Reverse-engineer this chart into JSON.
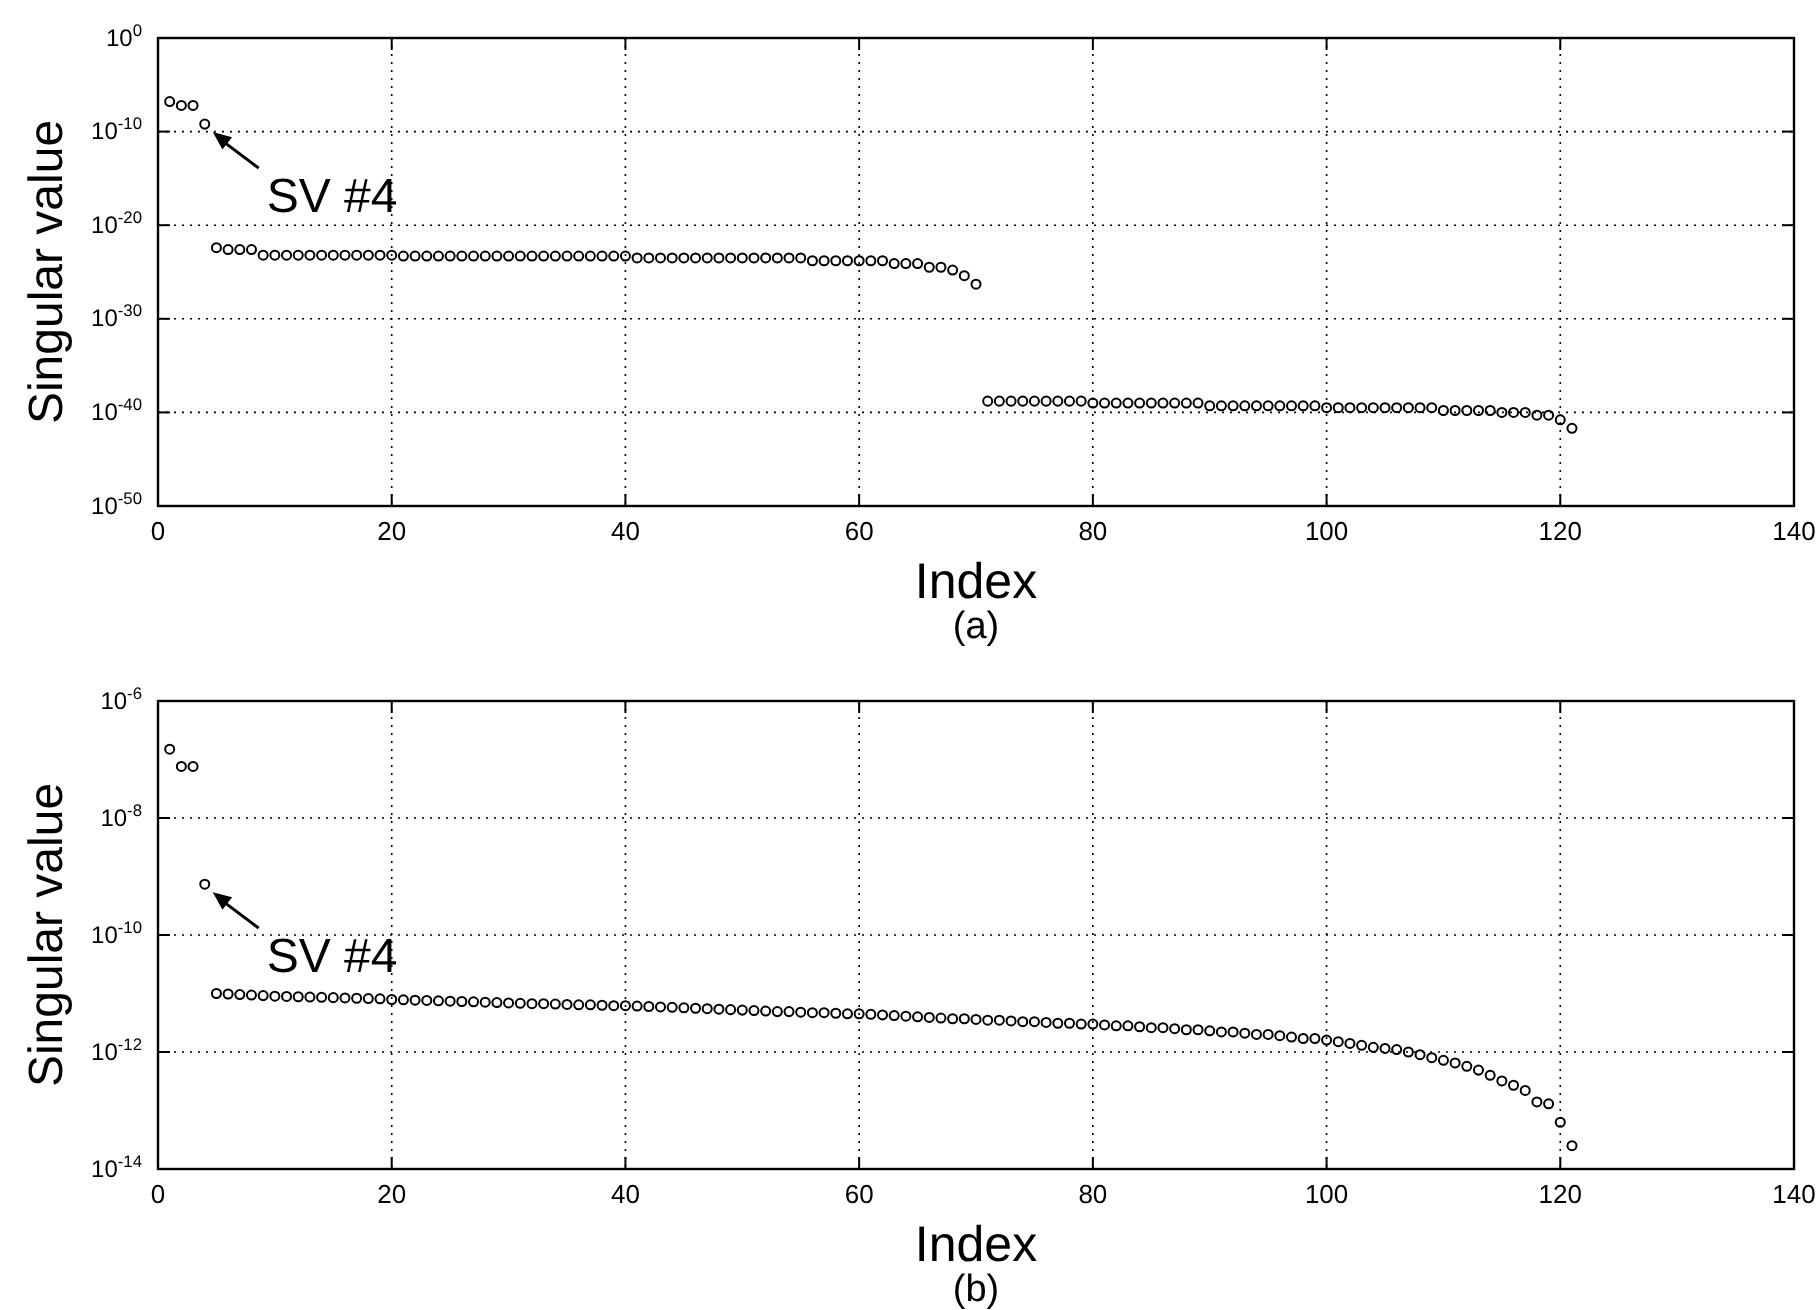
{
  "chart_data": [
    {
      "type": "scatter",
      "xlabel": "Index",
      "ylabel": "Singular value",
      "log": "y",
      "grid": true,
      "marker": "circle",
      "xlim": [
        0,
        140
      ],
      "xticks": [
        0,
        20,
        40,
        60,
        80,
        100,
        120,
        140
      ],
      "ylim": [
        1e-50,
        1
      ],
      "yticks": [
        {
          "value": 1e-50,
          "label": "10$^{-50}$"
        },
        {
          "value": 1e-40,
          "label": "10$^{-40}$"
        },
        {
          "value": 1e-30,
          "label": "10$^{-30}$"
        },
        {
          "value": 1e-20,
          "label": "10$^{-20}$"
        },
        {
          "value": 1e-10,
          "label": "10$^{-10}$"
        },
        {
          "value": 1,
          "label": "10$^{0}$"
        }
      ],
      "annotations": [
        {
          "text": "SV #4",
          "x": 4,
          "y": 6.3e-10
        },
        "(a)"
      ],
      "series": [
        {
          "color": "#000000",
          "x": [
            1,
            2,
            3,
            4,
            5,
            6,
            7,
            8,
            9,
            10,
            11,
            12,
            13,
            14,
            15,
            16,
            17,
            18,
            19,
            20,
            21,
            22,
            23,
            24,
            25,
            26,
            27,
            28,
            29,
            30,
            31,
            32,
            33,
            34,
            35,
            36,
            37,
            38,
            39,
            40,
            41,
            42,
            43,
            44,
            45,
            46,
            47,
            48,
            49,
            50,
            51,
            52,
            53,
            54,
            55,
            56,
            57,
            58,
            59,
            60,
            61,
            62,
            63,
            64,
            65,
            66,
            67,
            68,
            69,
            70,
            71,
            72,
            73,
            74,
            75,
            76,
            77,
            78,
            79,
            80,
            81,
            82,
            83,
            84,
            85,
            86,
            87,
            88,
            89,
            90,
            91,
            92,
            93,
            94,
            95,
            96,
            97,
            98,
            99,
            100,
            101,
            102,
            103,
            104,
            105,
            106,
            107,
            108,
            109,
            110,
            111,
            112,
            113,
            114,
            115,
            116,
            117,
            118,
            119,
            120,
            121
          ],
          "values": [
            1.6e-07,
            6.3e-08,
            6.3e-08,
            6.3e-10,
            4e-23,
            2.5e-23,
            2.5e-23,
            2.5e-23,
            6.3e-24,
            6.3e-24,
            6.3e-24,
            6.3e-24,
            6.3e-24,
            6.3e-24,
            6.3e-24,
            6.3e-24,
            6.3e-24,
            6.3e-24,
            6.3e-24,
            6.3e-24,
            5e-24,
            5e-24,
            5e-24,
            5e-24,
            5e-24,
            5e-24,
            5e-24,
            5e-24,
            5e-24,
            5e-24,
            5e-24,
            5e-24,
            5e-24,
            5e-24,
            5e-24,
            5e-24,
            5e-24,
            5e-24,
            5e-24,
            5e-24,
            3.2e-24,
            3.2e-24,
            3.2e-24,
            3.2e-24,
            3.2e-24,
            3.2e-24,
            3.2e-24,
            3.2e-24,
            3.2e-24,
            3.2e-24,
            3.2e-24,
            3.2e-24,
            3.2e-24,
            3.2e-24,
            3.2e-24,
            1.6e-24,
            1.6e-24,
            1.6e-24,
            1.6e-24,
            1.6e-24,
            1.6e-24,
            1.6e-24,
            8e-25,
            8e-25,
            8e-25,
            3.2e-25,
            3.2e-25,
            1.6e-25,
            4e-26,
            5e-27,
            1.6e-39,
            1.6e-39,
            1.6e-39,
            1.6e-39,
            1.6e-39,
            1.6e-39,
            1.6e-39,
            1.6e-39,
            1.6e-39,
            1e-39,
            1e-39,
            1e-39,
            1e-39,
            1e-39,
            1e-39,
            1e-39,
            1e-39,
            1e-39,
            1e-39,
            5e-40,
            5e-40,
            5e-40,
            5e-40,
            5e-40,
            5e-40,
            5e-40,
            5e-40,
            5e-40,
            5e-40,
            3.2e-40,
            3.2e-40,
            3.2e-40,
            3.2e-40,
            3.2e-40,
            3.2e-40,
            3.2e-40,
            3.2e-40,
            3.2e-40,
            3.2e-40,
            1.6e-40,
            1.6e-40,
            1.6e-40,
            1.6e-40,
            1.6e-40,
            1e-40,
            1e-40,
            1e-40,
            5e-41,
            5e-41,
            1.6e-41,
            2e-42
          ]
        }
      ]
    },
    {
      "type": "scatter",
      "xlabel": "Index",
      "ylabel": "Singular value",
      "log": "y",
      "grid": true,
      "marker": "circle",
      "xlim": [
        0,
        140
      ],
      "xticks": [
        0,
        20,
        40,
        60,
        80,
        100,
        120,
        140
      ],
      "ylim": [
        1e-14,
        1e-06
      ],
      "yticks": [
        {
          "value": 1e-14,
          "label": "10$^{-14}$"
        },
        {
          "value": 1e-12,
          "label": "10$^{-12}$"
        },
        {
          "value": 1e-10,
          "label": "10$^{-10}$"
        },
        {
          "value": 1e-08,
          "label": "10$^{-8}$"
        },
        {
          "value": 1e-06,
          "label": "10$^{-6}$"
        }
      ],
      "annotations": [
        {
          "text": "SV #4",
          "x": 4,
          "y": 7.4e-10
        },
        "(b)"
      ],
      "series": [
        {
          "color": "#000000",
          "x": [
            1,
            2,
            3,
            4,
            5,
            6,
            7,
            8,
            9,
            10,
            11,
            12,
            13,
            14,
            15,
            16,
            17,
            18,
            19,
            20,
            21,
            22,
            23,
            24,
            25,
            26,
            27,
            28,
            29,
            30,
            31,
            32,
            33,
            34,
            35,
            36,
            37,
            38,
            39,
            40,
            41,
            42,
            43,
            44,
            45,
            46,
            47,
            48,
            49,
            50,
            51,
            52,
            53,
            54,
            55,
            56,
            57,
            58,
            59,
            60,
            61,
            62,
            63,
            64,
            65,
            66,
            67,
            68,
            69,
            70,
            71,
            72,
            73,
            74,
            75,
            76,
            77,
            78,
            79,
            80,
            81,
            82,
            83,
            84,
            85,
            86,
            87,
            88,
            89,
            90,
            91,
            92,
            93,
            94,
            95,
            96,
            97,
            98,
            99,
            100,
            101,
            102,
            103,
            104,
            105,
            106,
            107,
            108,
            109,
            110,
            111,
            112,
            113,
            114,
            115,
            116,
            117,
            118,
            119,
            120,
            121
          ],
          "values": [
            1.5e-07,
            7.6e-08,
            7.6e-08,
            7.4e-10,
            1e-11,
            9.8e-12,
            9.6e-12,
            9.4e-12,
            9.2e-12,
            9e-12,
            8.9e-12,
            8.8e-12,
            8.7e-12,
            8.6e-12,
            8.5e-12,
            8.4e-12,
            8.3e-12,
            8.2e-12,
            8.1e-12,
            7.9e-12,
            7.8e-12,
            7.7e-12,
            7.6e-12,
            7.5e-12,
            7.4e-12,
            7.3e-12,
            7.2e-12,
            7.1e-12,
            7e-12,
            6.9e-12,
            6.8e-12,
            6.7e-12,
            6.7e-12,
            6.6e-12,
            6.5e-12,
            6.4e-12,
            6.4e-12,
            6.3e-12,
            6.2e-12,
            6.2e-12,
            6.1e-12,
            6e-12,
            5.9e-12,
            5.8e-12,
            5.7e-12,
            5.6e-12,
            5.5e-12,
            5.4e-12,
            5.3e-12,
            5.2e-12,
            5.1e-12,
            5e-12,
            4.9e-12,
            4.9e-12,
            4.8e-12,
            4.7e-12,
            4.7e-12,
            4.6e-12,
            4.5e-12,
            4.5e-12,
            4.4e-12,
            4.3e-12,
            4.2e-12,
            4.1e-12,
            4e-12,
            3.9e-12,
            3.8e-12,
            3.7e-12,
            3.7e-12,
            3.6e-12,
            3.5e-12,
            3.5e-12,
            3.4e-12,
            3.3e-12,
            3.3e-12,
            3.2e-12,
            3.1e-12,
            3.1e-12,
            3e-12,
            3e-12,
            2.9e-12,
            2.8e-12,
            2.8e-12,
            2.7e-12,
            2.6e-12,
            2.6e-12,
            2.5e-12,
            2.4e-12,
            2.4e-12,
            2.3e-12,
            2.2e-12,
            2.2e-12,
            2.1e-12,
            2e-12,
            2e-12,
            1.9e-12,
            1.8e-12,
            1.7e-12,
            1.7e-12,
            1.6e-12,
            1.5e-12,
            1.4e-12,
            1.3e-12,
            1.2e-12,
            1.15e-12,
            1.1e-12,
            1e-12,
            9e-13,
            8e-13,
            7.2e-13,
            6.5e-13,
            5.7e-13,
            4.9e-13,
            4e-13,
            3.2e-13,
            2.7e-13,
            2.2e-13,
            1.4e-13,
            1.3e-13,
            6.3e-14,
            2.5e-14
          ]
        }
      ]
    }
  ]
}
